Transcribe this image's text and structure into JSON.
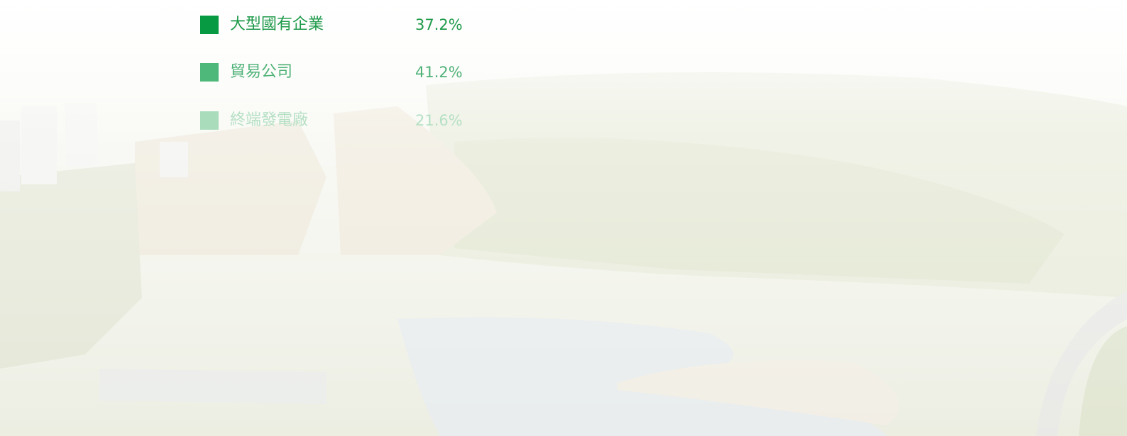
{
  "legend": {
    "items": [
      {
        "label": "大型國有企業",
        "value": "37.2%",
        "color": "#079a42",
        "text_color": "#1f9a4a"
      },
      {
        "label": "貿易公司",
        "value": "41.2%",
        "color": "#4db879",
        "text_color": "#4fb277"
      },
      {
        "label": "終端發電廠",
        "value": "21.6%",
        "color": "#a9dcbb",
        "text_color": "#b5e0c4"
      }
    ]
  }
}
